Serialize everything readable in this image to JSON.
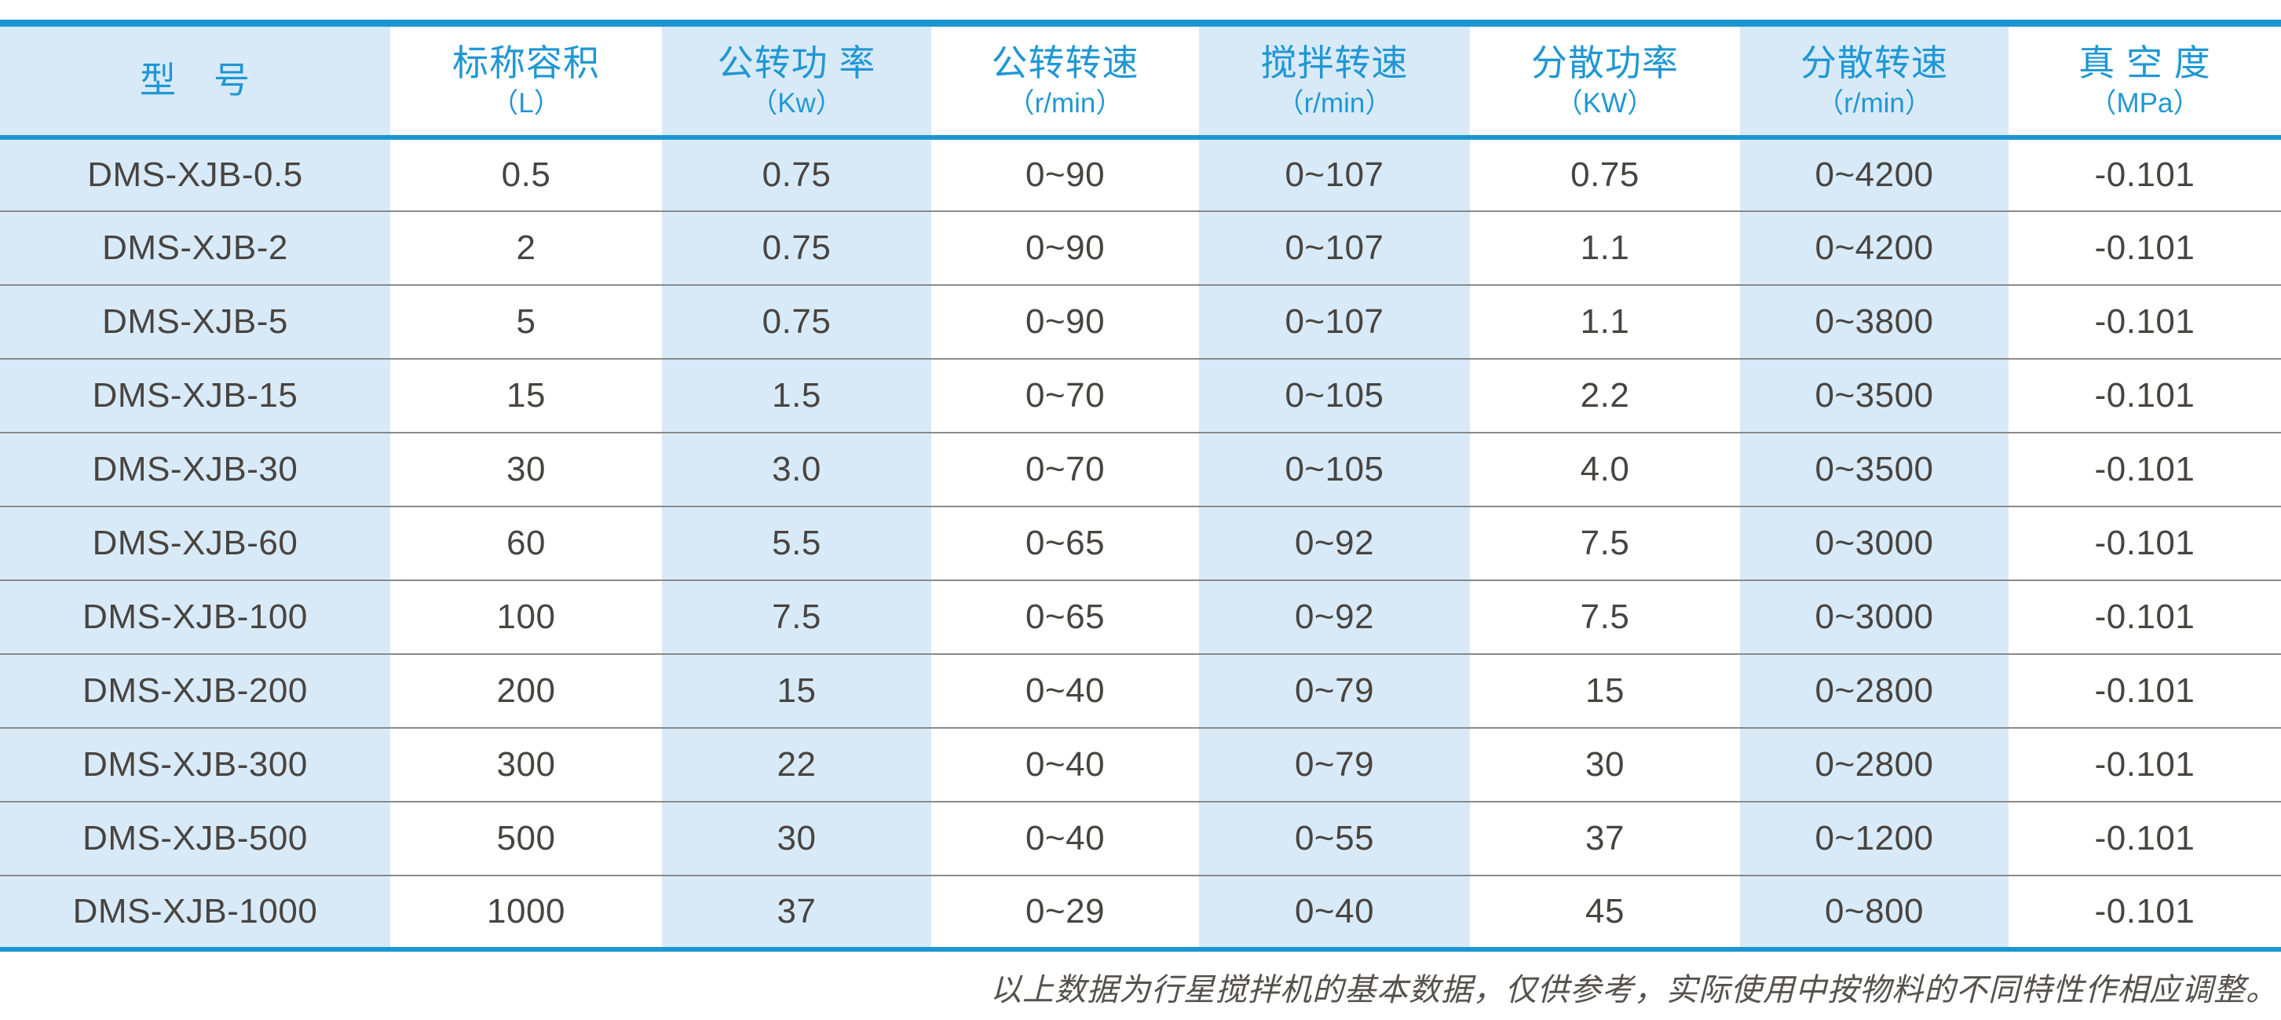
{
  "colors": {
    "accent_blue": "#1b96d2",
    "header_text_blue": "#2097d4",
    "band_light_blue": "#d8eaf8",
    "cell_text_gray": "#484440",
    "row_divider_gray": "#8a8a8a",
    "footer_text_gray": "#55514c"
  },
  "table": {
    "columns": [
      {
        "label": "型　号",
        "unit": ""
      },
      {
        "label": "标称容积",
        "unit": "（L）"
      },
      {
        "label": "公转功 率",
        "unit": "（Kw）"
      },
      {
        "label": "公转转速",
        "unit": "（r/min）"
      },
      {
        "label": "搅拌转速",
        "unit": "（r/min）"
      },
      {
        "label": "分散功率",
        "unit": "（KW）"
      },
      {
        "label": "分散转速",
        "unit": "（r/min）"
      },
      {
        "label": "真 空 度",
        "unit": "（MPa）"
      }
    ],
    "rows": [
      [
        "DMS-XJB-0.5",
        "0.5",
        "0.75",
        "0~90",
        "0~107",
        "0.75",
        "0~4200",
        "-0.101"
      ],
      [
        "DMS-XJB-2",
        "2",
        "0.75",
        "0~90",
        "0~107",
        "1.1",
        "0~4200",
        "-0.101"
      ],
      [
        "DMS-XJB-5",
        "5",
        "0.75",
        "0~90",
        "0~107",
        "1.1",
        "0~3800",
        "-0.101"
      ],
      [
        "DMS-XJB-15",
        "15",
        "1.5",
        "0~70",
        "0~105",
        "2.2",
        "0~3500",
        "-0.101"
      ],
      [
        "DMS-XJB-30",
        "30",
        "3.0",
        "0~70",
        "0~105",
        "4.0",
        "0~3500",
        "-0.101"
      ],
      [
        "DMS-XJB-60",
        "60",
        "5.5",
        "0~65",
        "0~92",
        "7.5",
        "0~3000",
        "-0.101"
      ],
      [
        "DMS-XJB-100",
        "100",
        "7.5",
        "0~65",
        "0~92",
        "7.5",
        "0~3000",
        "-0.101"
      ],
      [
        "DMS-XJB-200",
        "200",
        "15",
        "0~40",
        "0~79",
        "15",
        "0~2800",
        "-0.101"
      ],
      [
        "DMS-XJB-300",
        "300",
        "22",
        "0~40",
        "0~79",
        "30",
        "0~2800",
        "-0.101"
      ],
      [
        "DMS-XJB-500",
        "500",
        "30",
        "0~40",
        "0~55",
        "37",
        "0~1200",
        "-0.101"
      ],
      [
        "DMS-XJB-1000",
        "1000",
        "37",
        "0~29",
        "0~40",
        "45",
        "0~800",
        "-0.101"
      ]
    ]
  },
  "footer": {
    "note": "以上数据为行星搅拌机的基本数据，仅供参考，实际使用中按物料的不同特性作相应调整。"
  }
}
